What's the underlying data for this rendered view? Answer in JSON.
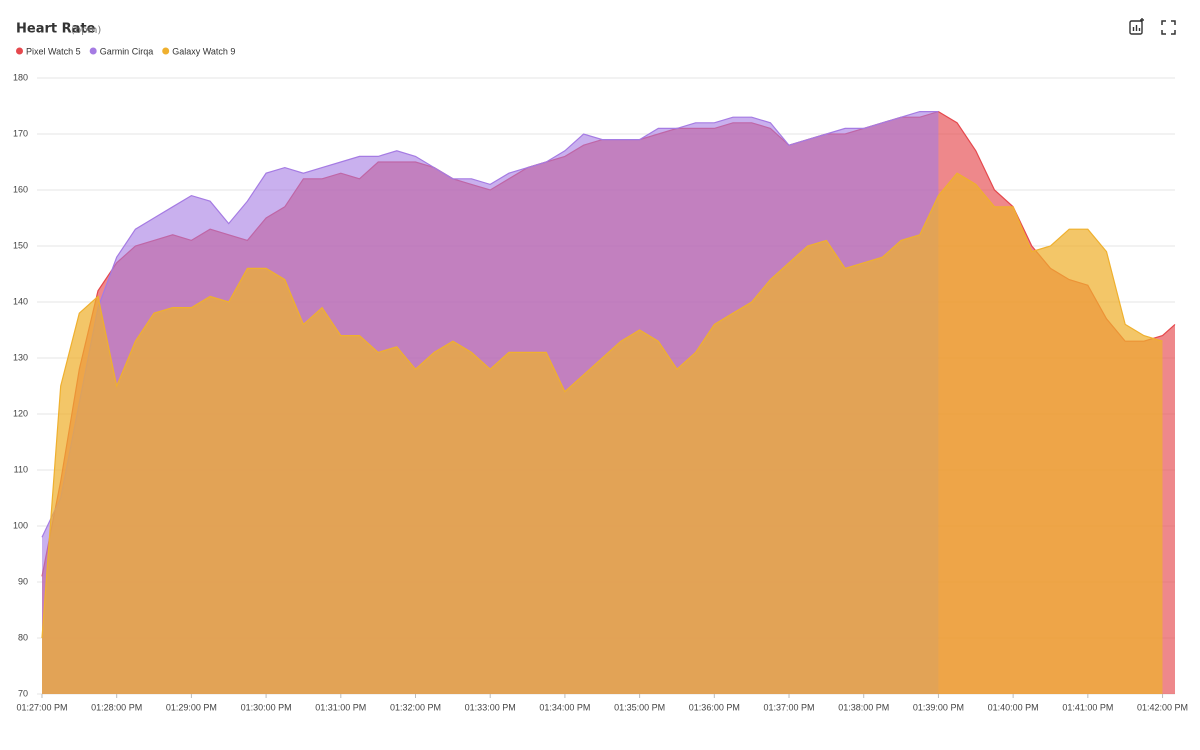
{
  "chart_data": {
    "type": "area",
    "title": "Heart Rate",
    "subtitle": "(bpm)",
    "x": [
      "01:27:00 PM",
      "01:27:15 PM",
      "01:27:30 PM",
      "01:27:45 PM",
      "01:28:00 PM",
      "01:28:15 PM",
      "01:28:30 PM",
      "01:28:45 PM",
      "01:29:00 PM",
      "01:29:15 PM",
      "01:29:30 PM",
      "01:29:45 PM",
      "01:30:00 PM",
      "01:30:15 PM",
      "01:30:30 PM",
      "01:30:45 PM",
      "01:31:00 PM",
      "01:31:15 PM",
      "01:31:30 PM",
      "01:31:45 PM",
      "01:32:00 PM",
      "01:32:15 PM",
      "01:32:30 PM",
      "01:32:45 PM",
      "01:33:00 PM",
      "01:33:15 PM",
      "01:33:30 PM",
      "01:33:45 PM",
      "01:34:00 PM",
      "01:34:15 PM",
      "01:34:30 PM",
      "01:34:45 PM",
      "01:35:00 PM",
      "01:35:15 PM",
      "01:35:30 PM",
      "01:35:45 PM",
      "01:36:00 PM",
      "01:36:15 PM",
      "01:36:30 PM",
      "01:36:45 PM",
      "01:37:00 PM",
      "01:37:15 PM",
      "01:37:30 PM",
      "01:37:45 PM",
      "01:38:00 PM",
      "01:38:15 PM",
      "01:38:30 PM",
      "01:38:45 PM",
      "01:39:00 PM",
      "01:39:15 PM",
      "01:39:30 PM",
      "01:39:45 PM",
      "01:40:00 PM",
      "01:40:15 PM",
      "01:40:30 PM",
      "01:40:45 PM",
      "01:41:00 PM",
      "01:41:15 PM",
      "01:41:30 PM",
      "01:41:45 PM",
      "01:42:00 PM",
      "01:42:10 PM"
    ],
    "series": [
      {
        "name": "Pixel Watch 5",
        "color": "#e5484d",
        "values": [
          91,
          108,
          128,
          142,
          147,
          150,
          151,
          152,
          151,
          153,
          152,
          151,
          155,
          157,
          162,
          162,
          163,
          162,
          165,
          165,
          165,
          164,
          162,
          161,
          160,
          162,
          164,
          165,
          166,
          168,
          169,
          169,
          169,
          170,
          171,
          171,
          171,
          172,
          172,
          171,
          168,
          169,
          170,
          170,
          171,
          172,
          173,
          173,
          174,
          172,
          167,
          160,
          157,
          150,
          146,
          144,
          143,
          137,
          133,
          133,
          134,
          136
        ]
      },
      {
        "name": "Garmin Cirqa",
        "color": "#a57be3",
        "values": [
          98,
          105,
          122,
          139,
          148,
          153,
          155,
          157,
          159,
          158,
          154,
          158,
          163,
          164,
          163,
          164,
          165,
          166,
          166,
          167,
          166,
          164,
          162,
          162,
          161,
          163,
          164,
          165,
          167,
          170,
          169,
          169,
          169,
          171,
          171,
          172,
          172,
          173,
          173,
          172,
          168,
          169,
          170,
          171,
          171,
          172,
          173,
          174,
          174,
          null,
          null,
          null,
          null,
          null,
          null,
          null,
          null,
          null,
          null,
          null,
          null,
          null
        ]
      },
      {
        "name": "Galaxy Watch 9",
        "color": "#efb02e",
        "values": [
          80,
          125,
          138,
          141,
          125,
          133,
          138,
          139,
          139,
          141,
          140,
          146,
          146,
          144,
          136,
          139,
          134,
          134,
          131,
          132,
          128,
          131,
          133,
          131,
          128,
          131,
          131,
          131,
          124,
          127,
          130,
          133,
          135,
          133,
          128,
          131,
          136,
          138,
          140,
          144,
          147,
          150,
          151,
          146,
          147,
          148,
          151,
          152,
          159,
          163,
          161,
          157,
          157,
          149,
          150,
          153,
          153,
          149,
          136,
          134,
          133,
          null
        ]
      }
    ],
    "xlim": [
      "01:26:56 PM",
      "01:42:10 PM"
    ],
    "xticks": [
      "01:27:00 PM",
      "01:28:00 PM",
      "01:29:00 PM",
      "01:30:00 PM",
      "01:31:00 PM",
      "01:32:00 PM",
      "01:33:00 PM",
      "01:34:00 PM",
      "01:35:00 PM",
      "01:36:00 PM",
      "01:37:00 PM",
      "01:38:00 PM",
      "01:39:00 PM",
      "01:40:00 PM",
      "01:41:00 PM",
      "01:42:00 PM"
    ],
    "ylim": [
      70,
      180
    ],
    "yticks": [
      70,
      80,
      90,
      100,
      110,
      120,
      130,
      140,
      150,
      160,
      170,
      180
    ],
    "grid": true,
    "legend": "top-left"
  }
}
